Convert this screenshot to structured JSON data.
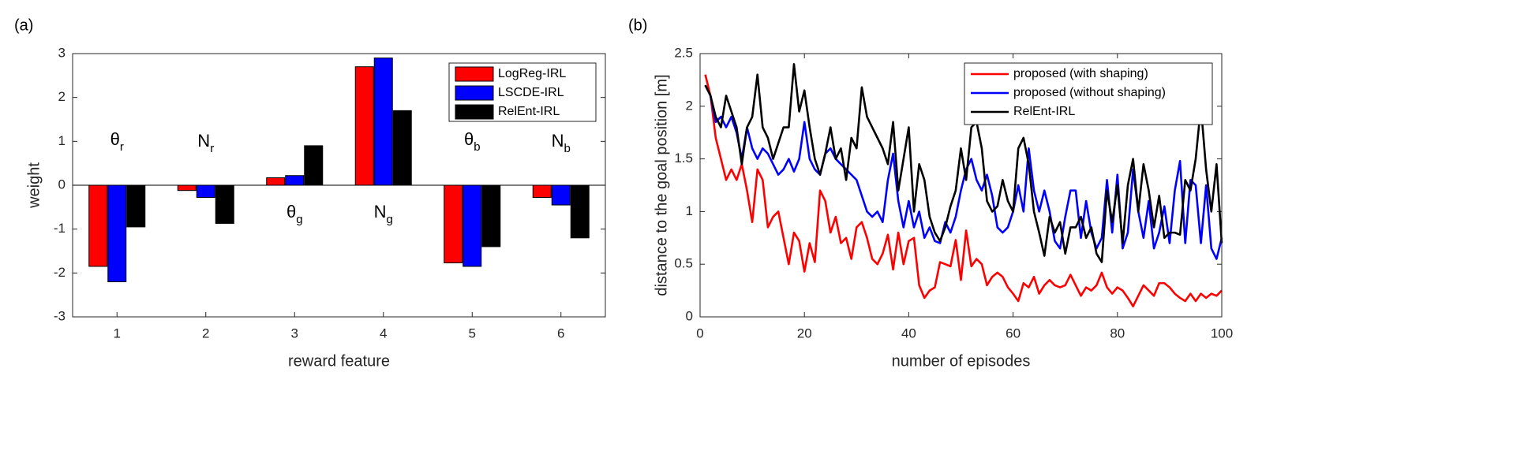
{
  "chart_data": [
    {
      "type": "bar",
      "panel_label": "(a)",
      "xlabel": "reward feature",
      "ylabel": "weight",
      "categories": [
        "1",
        "2",
        "3",
        "4",
        "5",
        "6"
      ],
      "series": [
        {
          "name": "LogReg-IRL",
          "color": "#ff0000",
          "values": [
            -1.85,
            -0.12,
            0.17,
            2.7,
            -1.77,
            -0.28
          ]
        },
        {
          "name": "LSCDE-IRL",
          "color": "#0000ff",
          "values": [
            -2.2,
            -0.28,
            0.22,
            2.9,
            -1.85,
            -0.45
          ]
        },
        {
          "name": "RelEnt-IRL",
          "color": "#000000",
          "values": [
            -0.95,
            -0.87,
            0.9,
            1.7,
            -1.4,
            -1.2
          ]
        }
      ],
      "ylim": [
        -3,
        3
      ],
      "yticks": [
        -3,
        -2,
        -1,
        0,
        1,
        2,
        3
      ],
      "legend": "upper right",
      "annotations": [
        {
          "text": "θ",
          "sub": "r"
        },
        {
          "text": "N",
          "sub": "r"
        },
        {
          "text": "θ",
          "sub": "g"
        },
        {
          "text": "N",
          "sub": "g"
        },
        {
          "text": "θ",
          "sub": "b"
        },
        {
          "text": "N",
          "sub": "b"
        }
      ]
    },
    {
      "type": "line",
      "panel_label": "(b)",
      "xlabel": "number of episodes",
      "ylabel": "distance to the goal position [m]",
      "x": [
        1,
        2,
        3,
        4,
        5,
        6,
        7,
        8,
        9,
        10,
        11,
        12,
        13,
        14,
        15,
        16,
        17,
        18,
        19,
        20,
        21,
        22,
        23,
        24,
        25,
        26,
        27,
        28,
        29,
        30,
        31,
        32,
        33,
        34,
        35,
        36,
        37,
        38,
        39,
        40,
        41,
        42,
        43,
        44,
        45,
        46,
        47,
        48,
        49,
        50,
        51,
        52,
        53,
        54,
        55,
        56,
        57,
        58,
        59,
        60,
        61,
        62,
        63,
        64,
        65,
        66,
        67,
        68,
        69,
        70,
        71,
        72,
        73,
        74,
        75,
        76,
        77,
        78,
        79,
        80,
        81,
        82,
        83,
        84,
        85,
        86,
        87,
        88,
        89,
        90,
        91,
        92,
        93,
        94,
        95,
        96,
        97,
        98,
        99,
        100
      ],
      "series": [
        {
          "name": "proposed (with shaping)",
          "color": "#ff0000",
          "values": [
            2.3,
            2.1,
            1.7,
            1.5,
            1.3,
            1.4,
            1.3,
            1.45,
            1.2,
            0.9,
            1.4,
            1.3,
            0.85,
            0.95,
            1.0,
            0.75,
            0.5,
            0.8,
            0.72,
            0.43,
            0.7,
            0.52,
            1.2,
            1.1,
            0.8,
            0.95,
            0.7,
            0.75,
            0.55,
            0.85,
            0.9,
            0.75,
            0.55,
            0.5,
            0.6,
            0.78,
            0.45,
            0.8,
            0.5,
            0.72,
            0.75,
            0.3,
            0.18,
            0.25,
            0.28,
            0.52,
            0.5,
            0.48,
            0.73,
            0.35,
            0.82,
            0.48,
            0.55,
            0.5,
            0.3,
            0.38,
            0.42,
            0.38,
            0.28,
            0.22,
            0.15,
            0.32,
            0.28,
            0.38,
            0.22,
            0.3,
            0.35,
            0.3,
            0.28,
            0.3,
            0.4,
            0.3,
            0.2,
            0.28,
            0.25,
            0.3,
            0.42,
            0.28,
            0.22,
            0.28,
            0.25,
            0.18,
            0.1,
            0.2,
            0.3,
            0.25,
            0.2,
            0.32,
            0.32,
            0.28,
            0.22,
            0.18,
            0.15,
            0.22,
            0.15,
            0.22,
            0.18,
            0.22,
            0.2,
            0.25
          ]
        },
        {
          "name": "proposed (without shaping)",
          "color": "#0000ff",
          "values": [
            2.2,
            2.1,
            1.85,
            1.9,
            1.8,
            1.9,
            1.75,
            1.5,
            1.8,
            1.6,
            1.5,
            1.6,
            1.55,
            1.45,
            1.35,
            1.4,
            1.5,
            1.38,
            1.5,
            1.85,
            1.5,
            1.4,
            1.35,
            1.55,
            1.6,
            1.5,
            1.45,
            1.4,
            1.35,
            1.3,
            1.15,
            1.0,
            0.95,
            1.0,
            0.9,
            1.3,
            1.55,
            1.1,
            0.85,
            1.1,
            0.85,
            1.0,
            0.75,
            0.85,
            0.72,
            0.7,
            0.9,
            0.8,
            0.95,
            1.2,
            1.4,
            1.5,
            1.3,
            1.2,
            1.35,
            1.15,
            0.85,
            0.8,
            0.85,
            1.0,
            1.25,
            1.0,
            1.6,
            1.2,
            1.0,
            1.2,
            1.0,
            0.72,
            0.65,
            0.95,
            1.2,
            1.2,
            0.75,
            1.1,
            0.8,
            0.65,
            0.75,
            1.3,
            0.8,
            1.35,
            0.65,
            0.8,
            1.4,
            1.0,
            0.75,
            1.1,
            0.65,
            0.8,
            1.05,
            0.7,
            1.2,
            1.48,
            0.7,
            1.3,
            1.25,
            0.7,
            1.25,
            0.65,
            0.55,
            0.75
          ]
        },
        {
          "name": "RelEnt-IRL",
          "color": "#000000",
          "values": [
            2.2,
            2.1,
            1.9,
            1.8,
            2.1,
            1.95,
            1.8,
            1.45,
            1.8,
            1.9,
            2.3,
            1.8,
            1.7,
            1.5,
            1.65,
            1.8,
            1.8,
            2.4,
            1.95,
            2.15,
            1.8,
            1.5,
            1.35,
            1.55,
            1.8,
            1.5,
            1.6,
            1.3,
            1.7,
            1.6,
            2.18,
            1.9,
            1.8,
            1.7,
            1.6,
            1.45,
            1.85,
            1.2,
            1.5,
            1.8,
            1.0,
            1.45,
            1.3,
            0.95,
            0.8,
            0.72,
            0.85,
            1.05,
            1.2,
            1.6,
            1.3,
            1.8,
            1.85,
            1.6,
            1.1,
            1.0,
            1.05,
            1.3,
            1.1,
            1.0,
            1.6,
            1.7,
            1.45,
            1.0,
            0.8,
            0.58,
            0.95,
            0.8,
            0.9,
            0.6,
            0.85,
            0.85,
            0.95,
            0.75,
            0.85,
            0.6,
            0.52,
            1.2,
            0.9,
            1.25,
            0.7,
            1.25,
            1.5,
            1.0,
            1.45,
            1.2,
            0.85,
            1.15,
            0.75,
            0.8,
            0.8,
            0.78,
            1.3,
            1.2,
            1.5,
            2.0,
            1.4,
            1.0,
            1.45,
            0.7
          ]
        }
      ],
      "xlim": [
        0,
        100
      ],
      "xticks": [
        0,
        20,
        40,
        60,
        80,
        100
      ],
      "ylim": [
        0,
        2.5
      ],
      "yticks": [
        0,
        0.5,
        1,
        1.5,
        2,
        2.5
      ],
      "legend": "upper right"
    }
  ]
}
